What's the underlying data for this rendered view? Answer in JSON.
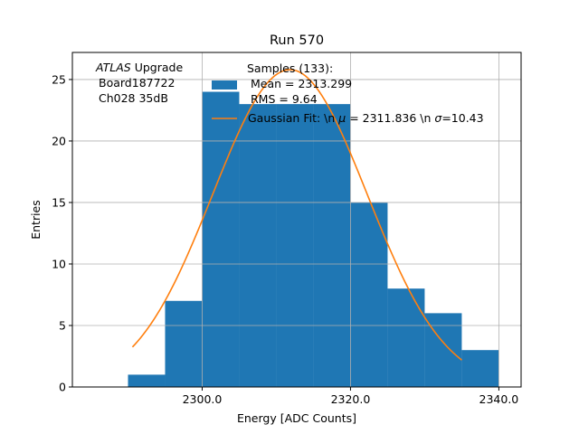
{
  "chart_data": {
    "type": "bar",
    "title": "Run 570",
    "xlabel": "Energy [ADC Counts]",
    "ylabel": "Entries",
    "xlim": [
      2282.5,
      2343.0
    ],
    "ylim": [
      0,
      27.2
    ],
    "grid": true,
    "x_ticks": [
      2300,
      2320,
      2340
    ],
    "x_tick_labels": [
      "2300.0",
      "2320.0",
      "2340.0"
    ],
    "y_ticks": [
      0,
      5,
      10,
      15,
      20,
      25
    ],
    "y_tick_labels": [
      "0",
      "5",
      "10",
      "15",
      "20",
      "25"
    ],
    "annotation": {
      "italic": "ATLAS",
      "line1_rest": " Upgrade",
      "line2": "Board187722",
      "line3": "Ch028 35dB"
    },
    "legend": {
      "placement": "top-center",
      "hist_line1": "Samples (133):",
      "hist_line2": "Mean = 2313.299",
      "hist_line3": "RMS = 9.64",
      "fit_prefix": "Gaussian Fit: \\n ",
      "fit_mu_symbol": "μ",
      "fit_mid": " = 2311.836 \\n ",
      "fit_sigma_symbol": "σ",
      "fit_suffix": "=10.43"
    },
    "series": [
      {
        "kind": "histogram",
        "color": "#1f77b4",
        "bin_edges": [
          2290,
          2295,
          2300,
          2305,
          2310,
          2315,
          2320,
          2325,
          2330,
          2335,
          2340
        ],
        "counts": [
          1,
          7,
          24,
          23,
          23,
          23,
          15,
          8,
          6,
          3
        ]
      },
      {
        "kind": "gaussian-fit",
        "color": "#ff7f0e",
        "mu": 2311.836,
        "sigma": 10.43,
        "amplitude": 25.8,
        "x_range": [
          2290.6,
          2335.0
        ]
      }
    ]
  }
}
